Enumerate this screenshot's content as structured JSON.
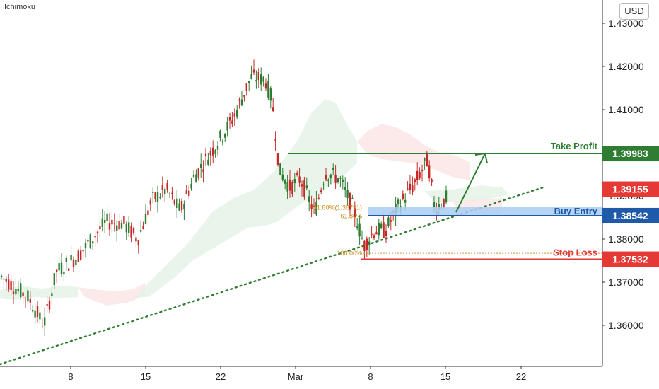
{
  "indicator_label": "Ichimoku",
  "currency": "USD",
  "chart_data": {
    "type": "candlestick",
    "yticks": [
      "1.43000",
      "1.42000",
      "1.41000",
      "1.39000",
      "1.38000",
      "1.37000",
      "1.36000"
    ],
    "xticks": [
      "8",
      "15",
      "22",
      "Mar",
      "8",
      "15",
      "22"
    ],
    "ylim": [
      1.354,
      1.436
    ],
    "levels": [
      {
        "id": "take-profit",
        "label": "Take Profit",
        "price": "1.39983",
        "color": "#2e7d32"
      },
      {
        "id": "current-price",
        "label": "",
        "price": "1.39155",
        "color": "#e53935"
      },
      {
        "id": "buy-entry",
        "label": "Buy Entry",
        "price": "1.38542",
        "color": "#1e5aa8"
      },
      {
        "id": "stop-loss",
        "label": "Stop Loss",
        "price": "1.37532",
        "color": "#e53935"
      }
    ],
    "fib_labels": [
      {
        "text": "61.80%(1.38791)",
        "price": 1.3873
      },
      {
        "text": "61.80%",
        "price": 1.3853
      },
      {
        "text": "100.00%",
        "price": 1.3767
      }
    ],
    "candle_color_up": "#2e7d32",
    "candle_color_down": "#c62828"
  }
}
